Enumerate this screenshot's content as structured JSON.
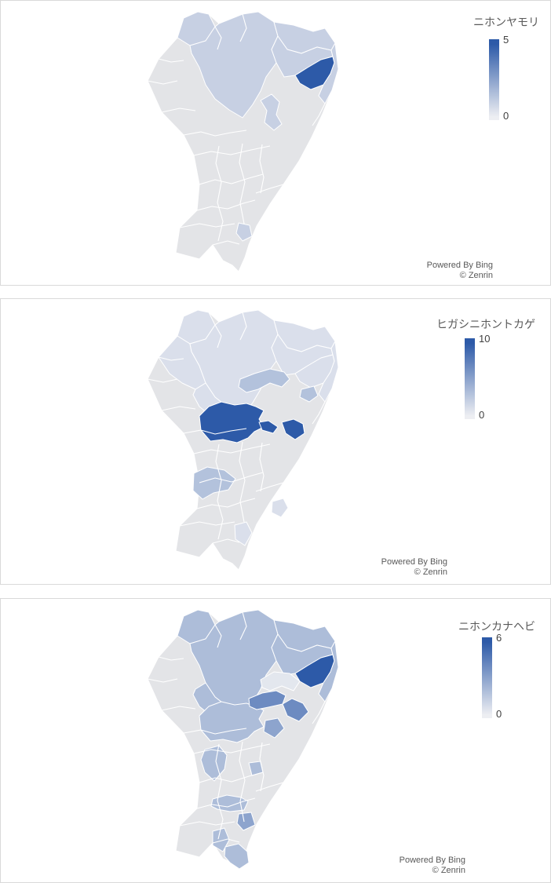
{
  "attribution": {
    "line1": "Powered By Bing",
    "line2": "© Zenrin"
  },
  "colors": {
    "scale_high": "#2d5aa8",
    "scale_low": "#edeef2",
    "no_data": "#e3e4e7",
    "region_border": "#ffffff",
    "panel_border": "#d9d9d9",
    "title_text": "#595959",
    "label_text": "#404040",
    "panel_background": "#ffffff"
  },
  "chart_data": [
    {
      "type": "heatmap",
      "subtype": "choropleth-map",
      "title": "ニホンヤモリ",
      "legend_max": "5",
      "legend_min": "0",
      "max": 5,
      "legend_position": "right",
      "regions": {
        "nw-knob": 1,
        "north-central": 1,
        "ne-upper": 1,
        "ne-mid": 1,
        "ne-dark": 5,
        "east-coast": 1,
        "mid-east-patch": 1,
        "south-small": 1
      }
    },
    {
      "type": "heatmap",
      "subtype": "choropleth-map",
      "title": "ヒガシニホントカゲ",
      "legend_max": "10",
      "legend_min": "0",
      "max": 10,
      "legend_position": "right",
      "regions": {
        "nw-knob": 1,
        "west-north": 1,
        "north-central": 1,
        "ne-upper": 1,
        "ne-mid": 1,
        "ne-dark": 1,
        "east-coast": 1,
        "center-mid": 1,
        "central": 10,
        "central-claw": 10,
        "central-blob": 10,
        "central-east-band": 3,
        "central-east-small": 3,
        "west-mid-band": 3,
        "east-small": 1,
        "south-patch": 1
      }
    },
    {
      "type": "heatmap",
      "subtype": "choropleth-map",
      "title": "ニホンカナヘビ",
      "legend_max": "6",
      "legend_min": "0",
      "max": 6,
      "legend_position": "right",
      "regions": {
        "nw-knob": 2,
        "north-central": 2,
        "ne-upper": 2,
        "ne-mid": 2,
        "ne-dark": 6,
        "east-coast": 2,
        "center-mid": 2,
        "central": 2,
        "ne-notch": 0.3,
        "mid-east-band-1": 4,
        "mid-east-band-2": 4,
        "below-small": 3,
        "west-low": 2,
        "small-square": 2,
        "south-band": 2,
        "south-dark-square": 3,
        "sw-patch": 2,
        "south-coast": 2
      }
    }
  ]
}
